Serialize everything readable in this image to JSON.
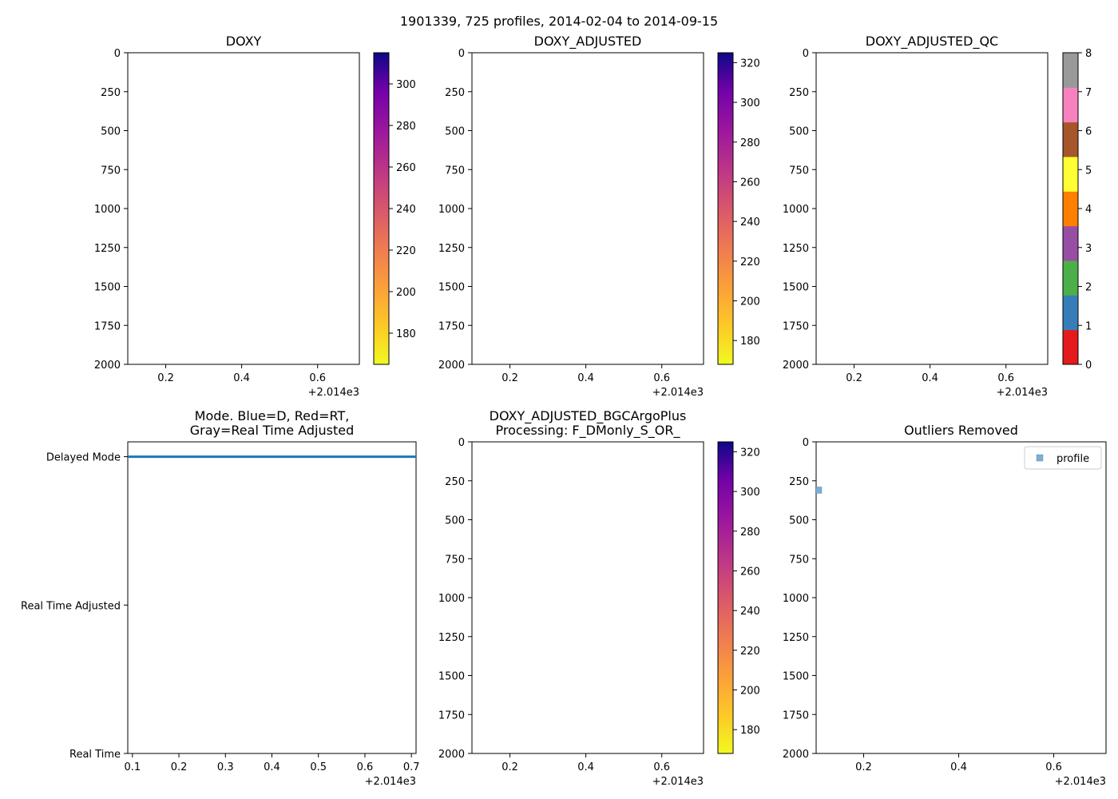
{
  "suptitle": "1901339, 725 profiles, 2014-02-04 to 2014-09-15",
  "panels": [
    {
      "id": "doxy",
      "type": "heatmap",
      "title_lines": [
        "DOXY"
      ],
      "x_ticks": [
        0.2,
        0.4,
        0.6
      ],
      "x_tick_labels": [
        "0.2",
        "0.4",
        "0.6"
      ],
      "x_offset_label": "+2.014e3",
      "xlim": [
        0.1,
        0.71
      ],
      "y_ticks": [
        0,
        250,
        500,
        750,
        1000,
        1250,
        1500,
        1750,
        2000
      ],
      "y_tick_labels": [
        "0",
        "250",
        "500",
        "750",
        "1000",
        "1250",
        "1500",
        "1750",
        "2000"
      ],
      "ylim": [
        0,
        2000
      ],
      "y_inverted": true,
      "colorbar": {
        "kind": "continuous",
        "colormap": "plasma_r",
        "range": [
          165,
          315
        ],
        "ticks": [
          180,
          200,
          220,
          240,
          260,
          280,
          300
        ],
        "tick_labels": [
          "180",
          "200",
          "220",
          "240",
          "260",
          "280",
          "300"
        ]
      }
    },
    {
      "id": "doxy-adjusted",
      "type": "heatmap",
      "title_lines": [
        "DOXY_ADJUSTED"
      ],
      "x_ticks": [
        0.2,
        0.4,
        0.6
      ],
      "x_tick_labels": [
        "0.2",
        "0.4",
        "0.6"
      ],
      "x_offset_label": "+2.014e3",
      "xlim": [
        0.1,
        0.71
      ],
      "y_ticks": [
        0,
        250,
        500,
        750,
        1000,
        1250,
        1500,
        1750,
        2000
      ],
      "y_tick_labels": [
        "0",
        "250",
        "500",
        "750",
        "1000",
        "1250",
        "1500",
        "1750",
        "2000"
      ],
      "ylim": [
        0,
        2000
      ],
      "y_inverted": true,
      "colorbar": {
        "kind": "continuous",
        "colormap": "plasma_r",
        "range": [
          168,
          325
        ],
        "ticks": [
          180,
          200,
          220,
          240,
          260,
          280,
          300,
          320
        ],
        "tick_labels": [
          "180",
          "200",
          "220",
          "240",
          "260",
          "280",
          "300",
          "320"
        ]
      }
    },
    {
      "id": "doxy-adjusted-qc",
      "type": "heatmap",
      "title_lines": [
        "DOXY_ADJUSTED_QC"
      ],
      "x_ticks": [
        0.2,
        0.4,
        0.6
      ],
      "x_tick_labels": [
        "0.2",
        "0.4",
        "0.6"
      ],
      "x_offset_label": "+2.014e3",
      "xlim": [
        0.1,
        0.71
      ],
      "y_ticks": [
        0,
        250,
        500,
        750,
        1000,
        1250,
        1500,
        1750,
        2000
      ],
      "y_tick_labels": [
        "0",
        "250",
        "500",
        "750",
        "1000",
        "1250",
        "1500",
        "1750",
        "2000"
      ],
      "ylim": [
        0,
        2000
      ],
      "y_inverted": true,
      "colorbar": {
        "kind": "discrete",
        "range": [
          0,
          8
        ],
        "colors": [
          "#e41a1c",
          "#377eb8",
          "#4daf4a",
          "#984ea3",
          "#ff7f00",
          "#ffff33",
          "#a65628",
          "#f781bf",
          "#999999"
        ],
        "ticks": [
          0,
          1,
          2,
          3,
          4,
          5,
          6,
          7,
          8
        ],
        "tick_labels": [
          "0",
          "1",
          "2",
          "3",
          "4",
          "5",
          "6",
          "7",
          "8"
        ]
      }
    },
    {
      "id": "mode",
      "type": "line",
      "title_lines": [
        "Mode. Blue=D, Red=RT,",
        "Gray=Real Time Adjusted"
      ],
      "x_ticks": [
        0.1,
        0.2,
        0.3,
        0.4,
        0.5,
        0.6,
        0.7
      ],
      "x_tick_labels": [
        "0.1",
        "0.2",
        "0.3",
        "0.4",
        "0.5",
        "0.6",
        "0.7"
      ],
      "x_offset_label": "+2.014e3",
      "xlim": [
        0.09,
        0.71
      ],
      "y_ticks": [
        0,
        1,
        2
      ],
      "y_tick_labels": [
        "Delayed Mode",
        "Real Time Adjusted",
        "Real Time"
      ],
      "ylim": [
        -0.1,
        2
      ],
      "y_inverted": true,
      "series": [
        {
          "name": "mode",
          "color": "#1f77b4",
          "x": [
            0.09,
            0.71
          ],
          "y": [
            0,
            0
          ]
        }
      ]
    },
    {
      "id": "doxy-bgc",
      "type": "heatmap",
      "title_lines": [
        "DOXY_ADJUSTED_BGCArgoPlus",
        "Processing: F_DMonly_S_OR_"
      ],
      "x_ticks": [
        0.2,
        0.4,
        0.6
      ],
      "x_tick_labels": [
        "0.2",
        "0.4",
        "0.6"
      ],
      "x_offset_label": "+2.014e3",
      "xlim": [
        0.1,
        0.71
      ],
      "y_ticks": [
        0,
        250,
        500,
        750,
        1000,
        1250,
        1500,
        1750,
        2000
      ],
      "y_tick_labels": [
        "0",
        "250",
        "500",
        "750",
        "1000",
        "1250",
        "1500",
        "1750",
        "2000"
      ],
      "ylim": [
        0,
        2000
      ],
      "y_inverted": true,
      "colorbar": {
        "kind": "continuous",
        "colormap": "plasma_r",
        "range": [
          168,
          325
        ],
        "ticks": [
          180,
          200,
          220,
          240,
          260,
          280,
          300,
          320
        ],
        "tick_labels": [
          "180",
          "200",
          "220",
          "240",
          "260",
          "280",
          "300",
          "320"
        ]
      }
    },
    {
      "id": "outliers",
      "type": "scatter",
      "title_lines": [
        "Outliers Removed"
      ],
      "x_ticks": [
        0.2,
        0.4,
        0.6
      ],
      "x_tick_labels": [
        "0.2",
        "0.4",
        "0.6"
      ],
      "x_offset_label": "+2.014e3",
      "xlim": [
        0.1,
        0.71
      ],
      "y_ticks": [
        0,
        250,
        500,
        750,
        1000,
        1250,
        1500,
        1750,
        2000
      ],
      "y_tick_labels": [
        "0",
        "250",
        "500",
        "750",
        "1000",
        "1250",
        "1500",
        "1750",
        "2000"
      ],
      "ylim": [
        0,
        2000
      ],
      "y_inverted": true,
      "legend": {
        "placement": "top-right",
        "entries": [
          "profile"
        ]
      },
      "series": [
        {
          "name": "profile",
          "color": "#7fadd2",
          "x": [
            0.105
          ],
          "y": [
            310
          ]
        }
      ]
    }
  ]
}
